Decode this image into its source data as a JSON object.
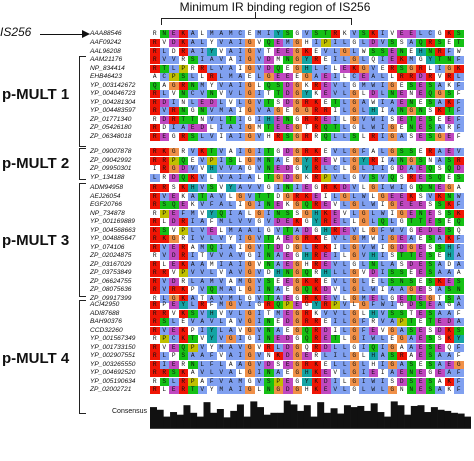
{
  "title": "Minimum IR binding region of IS256",
  "is_label": "IS256",
  "groups": [
    {
      "label": "p-MULT 1"
    },
    {
      "label": "p-MULT 2"
    },
    {
      "label": "p-MULT 3"
    },
    {
      "label": "p-MULT 4"
    }
  ],
  "accessions": [
    "AAA88546",
    "AAF09242",
    "AAL96208",
    "AAM21176",
    "NP_834414",
    "EHB46423",
    "YP_003142672",
    "YP_004046723",
    "YP_004281304",
    "YP_004483597",
    "ZP_01771340",
    "ZP_05426180",
    "ZP_06348018",
    "ZP_09007878",
    "ZP_09042992",
    "ZP_09950301",
    "YP_134188",
    "ADM94958",
    "AEJ26054",
    "EGF20766",
    "NP_734878",
    "YP_001169889",
    "YP_004568663",
    "YP_004885647",
    "YP_074106",
    "ZP_02024875",
    "ZP_03167029",
    "ZP_03753849",
    "ZP_06624755",
    "ZP_08075636",
    "ZP_09917399",
    "ACI42950",
    "ADI87688",
    "BAH90376",
    "CCD32260",
    "YP_001567349",
    "YP_001733150",
    "YP_002907551",
    "YP_003265550",
    "YP_004692520",
    "YP_005190634",
    "ZP_02002721"
  ],
  "sequences": [
    "RNEKALMAMCEMIYSGVSTRKVSKIVEELCGKSVSKSPFVSSLTLEKLT",
    "RVDKALYVAIGVQEMGHIPILGLDVSSAQRSETSWTQFLSSLKRRGVNL",
    "RLDRAIYVAIGVTEEGKEVLGLWSSENEHNRFWLRELSEIQKRGVRRV",
    "RVVRSIAVAIGVDMNGYREILGLQIEKMGYTNFLLSALSEIQSRGVKDI",
    "RTLPRRLVAIGVDQEGHLFLEKGVERSGRLIGKDLLRKLRQRGLREIN",
    "ACPSLLRLMAELGEEEGAEILCEALLRRDRVRLGRELVQLQRPGLEKL",
    "QAGRNMYVAIGLQSDGKREVLGMWIGESESAKFWLSVLSELKSRGVQDV",
    "RLVNCVNVVLGITTDGYKEVLGLDLNENEQGSFWLGVLGDLRNRGVEKT",
    "RDINLEDLVLGVTSDGRKETLGAWIAENESAKFWLSVLSELRNRGVKDT",
    "RVRNGNVMAIGVAGEGGRRILGLHIANGNSKTFWFRFFERQQRKGISV",
    "RDRTTNVLTIGIHENGRREILGVWISETESEEFWLEFLRSLRARGVEDV",
    "RDIAEDLIAIGMTEEGTRQTLGLWIGENESARFWLSLFRELKNRGLDKV",
    "REGRSLVIAIGVHRSGRRQLLSLRIGASESGEFWIAFAKELRRRGLGGT",
    "RKGRVKTVAIGITGDGRKEVLGFALGSSERAEVWRAFFKRLRQRGLKGV",
    "RRPQEVPISLGMNAEGYREVLGYRIANGSNASRWRSLLREFARRGVKKG",
    "IRGDVVHVVAGVNEDGYRLCLGLIIGDAEQSQDWRTILTRLRERGLSNI",
    "LRDQKVLVAIALTGDGKRPVLGVSVQSRESQESWRSLLTDFKKRGVPDA",
    "RRSKHVSVYAVVGINIEGRKDVLGIWIGQNEGAKFWRLILSELRDRGVKDI",
    "RVEKATAVLGVTTDGRKEILGLWLGEEKSVKNWSAFFTKLRNRGVKEV",
    "RSQEKVFALIGINEKGQREVLGLWIGEEESSKFWLSLLTELKNRGLKNV",
    "RPEFMVYQIALGINSSGHKEVLGLWIGENESSKYWLSVLTELKNRGVQDV",
    "RLDRIAFMLVVGVDEKGYRELLGLQLGTTESEQGWTEFFRDLRARGLKGV",
    "KSVPLVELMAALGVTADGHREVLGFWVGEDESQRYWLGVLSDLKARGVRDV",
    "RKGRIVLVYIGVTAEGRKEVLGMWIGEAESAKFWLQVMTELKNRGVQDI",
    "RVERAMQIAIGVTDDGLRKILGVWIGDGESSHFWHTVMTELKHRGVKDV",
    "RVDRITVVAVGINAEGHREILGVHISTTESEHAWTTFFQELKSRGLKEL",
    "RLEKAAMIAIGVNAEGHREVLGLNLASDESADAWTTFLQSLHARGLKQA",
    "RRVPVVLVAVGVDHNGQRHLLGVDISSEESAAAWRPFLRHLQARGLKGV",
    "RVDRLAMVAMGVSEEGKREVLGLELSNSESKESWSSFFNELKNRGLKQV",
    "RVRKPVQMALGINAEGQKDVLGLWIAAGESASNWSAFFADLKSRGLKDV",
    "RLGKATAVMLGVTAEGRKEVLGMELGETEGTSAWLEFLRSLKERGLKNV",
    "RPEYLRFMGVIGRQPEGYRPVLGFWIGDSEAGAFWLPLLQELKQRGLQNV",
    "RRVKSVHVVLGITMEGRKVVLGLHVSSTESAAFWLSVLNGLRERGVQDV",
    "RSLEVAVLAVGINEDGRREILGFRVAPTETEDAWREFLRSLKQRGLRGV",
    "RVEKPIYLAVGVNAEGQRDILGFEVGASESDKSWSRFLMELKSRGLKGV",
    "RPCKTVYVGIGINEDGQRETLGIWLEGAESSKYWLSVLNELKNRGLQDI",
    "RVEQPVYMAVGVRLDGQRDLLGIQIGAAESEQFWRTFLSELKQRGLRGV",
    "RLPSAAFVAIGVNKDGERLILGLHASRAESAAFWRSFLRNLKARGVSGV",
    "RIERNLFLAAGVDSEGRKELLGLHIGASESAEGWRSFLEDLKQRGLHGV",
    "RRSKAVLVALGINAEGHKEVLGIEIAENEGEAFWLSFLRQLKERGLKDV",
    "RSLRPAFVAMGVSPEGYKDILGIWISDSESAKFWASVLNELRSRGLKEV",
    "RLERTVYMAIGLNGDGHKEVLGLWLGNNESAKFWLSVLTELKNRGLKDI"
  ],
  "consensus_label": "Consensus",
  "consensus": [
    55,
    48,
    30,
    42,
    35,
    60,
    40,
    30,
    68,
    40,
    50,
    28,
    45,
    62,
    30,
    70,
    55,
    35,
    40,
    40,
    72,
    62,
    45,
    60,
    30,
    68,
    40,
    52,
    38,
    60,
    55,
    58,
    45,
    65,
    42,
    30,
    70,
    60,
    35,
    58,
    60,
    42,
    55,
    48,
    45,
    40,
    38,
    30
  ]
}
